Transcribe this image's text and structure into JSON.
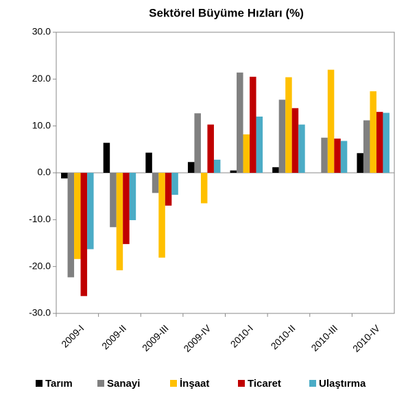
{
  "chart_data": {
    "type": "bar",
    "title": "Sektörel Büyüme Hızları (%)",
    "categories": [
      "2009-I",
      "2009-II",
      "2009-III",
      "2009-IV",
      "2010-I",
      "2010-II",
      "2010-III",
      "2010-IV"
    ],
    "series": [
      {
        "name": "Tarım",
        "color": "#000000",
        "values": [
          -1.2,
          6.4,
          4.3,
          2.3,
          0.5,
          1.2,
          0,
          4.2
        ]
      },
      {
        "name": "Sanayi",
        "color": "#808080",
        "values": [
          -22.3,
          -11.6,
          -4.3,
          12.7,
          21.4,
          15.6,
          7.5,
          11.2
        ]
      },
      {
        "name": "İnşaat",
        "color": "#ffc000",
        "values": [
          -18.4,
          -20.8,
          -18.1,
          -6.5,
          8.2,
          20.4,
          22.0,
          17.4
        ]
      },
      {
        "name": "Ticaret",
        "color": "#c00000",
        "values": [
          -26.3,
          -15.2,
          -7.0,
          10.3,
          20.5,
          13.8,
          7.3,
          13.0
        ]
      },
      {
        "name": "Ulaştırma",
        "color": "#4bacc6",
        "values": [
          -16.3,
          -10.1,
          -4.7,
          2.8,
          12.0,
          10.3,
          6.8,
          12.8
        ]
      }
    ],
    "ylim": [
      -30,
      30
    ],
    "yticks": [
      {
        "value": -30,
        "label": "-30.0"
      },
      {
        "value": -20,
        "label": "-20.0"
      },
      {
        "value": -10,
        "label": "-10.0"
      },
      {
        "value": 0,
        "label": "0.0"
      },
      {
        "value": 10,
        "label": "10.0"
      },
      {
        "value": 20,
        "label": "20.0"
      },
      {
        "value": 30,
        "label": "30.0"
      }
    ],
    "legend": "bottom"
  }
}
